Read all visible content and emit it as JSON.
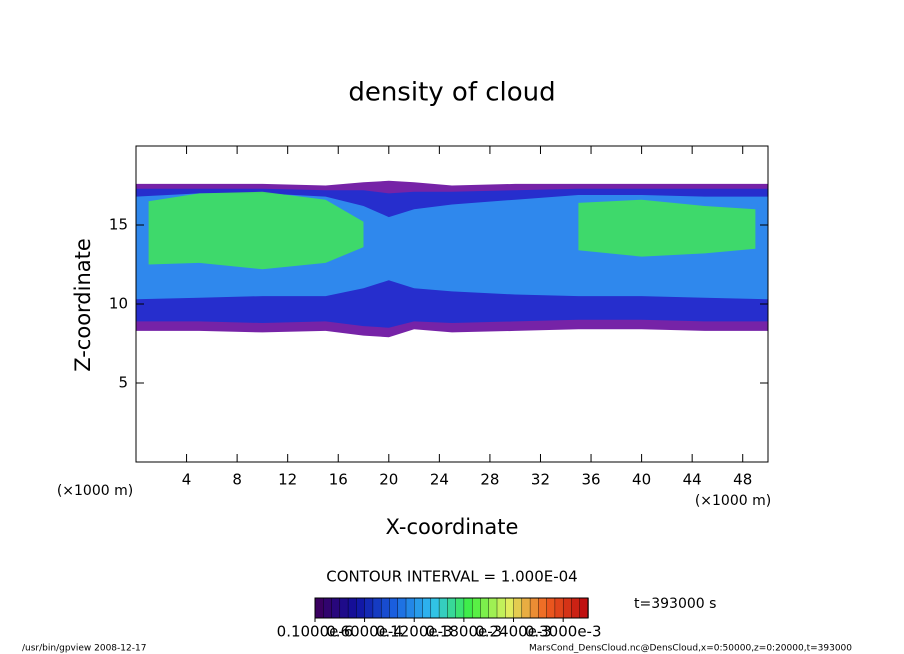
{
  "chart_data": {
    "type": "contour",
    "title": "density of cloud",
    "xlabel": "X-coordinate",
    "ylabel": "Z-coordinate",
    "x_unit": "(×1000 m)",
    "y_unit": "(×1000 m)",
    "xlim": [
      0,
      50
    ],
    "ylim": [
      0,
      20
    ],
    "xticks": [
      4,
      8,
      12,
      16,
      20,
      24,
      28,
      32,
      36,
      40,
      44,
      48
    ],
    "yticks": [
      5,
      10,
      15
    ],
    "layers": [
      {
        "color": "#6a10a0",
        "x": [
          0,
          5,
          10,
          15,
          18,
          20,
          22,
          25,
          30,
          35,
          40,
          45,
          50
        ],
        "top": [
          17.6,
          17.6,
          17.6,
          17.5,
          17.7,
          17.8,
          17.7,
          17.5,
          17.6,
          17.6,
          17.6,
          17.6,
          17.6
        ],
        "bottom": [
          8.3,
          8.3,
          8.2,
          8.3,
          8.0,
          7.9,
          8.4,
          8.2,
          8.3,
          8.4,
          8.4,
          8.3,
          8.3
        ]
      },
      {
        "color": "#2030d0",
        "x": [
          0,
          5,
          10,
          15,
          18,
          20,
          22,
          25,
          30,
          35,
          40,
          45,
          50
        ],
        "top": [
          17.3,
          17.3,
          17.3,
          17.2,
          17.2,
          17.0,
          17.1,
          17.1,
          17.2,
          17.3,
          17.3,
          17.3,
          17.3
        ],
        "bottom": [
          8.9,
          8.9,
          8.8,
          8.9,
          8.6,
          8.5,
          8.9,
          8.8,
          8.9,
          9.0,
          9.0,
          8.9,
          8.9
        ]
      },
      {
        "color": "#3090f0",
        "x": [
          0,
          5,
          10,
          15,
          18,
          20,
          22,
          25,
          30,
          35,
          40,
          45,
          50
        ],
        "top": [
          16.8,
          17.0,
          17.0,
          16.8,
          16.2,
          15.5,
          16.0,
          16.3,
          16.6,
          16.9,
          16.9,
          16.8,
          16.8
        ],
        "bottom": [
          10.3,
          10.4,
          10.5,
          10.5,
          11.0,
          11.5,
          11.0,
          10.8,
          10.6,
          10.5,
          10.5,
          10.4,
          10.3
        ]
      },
      {
        "color": "#40e060",
        "x": [
          1,
          5,
          10,
          15,
          18,
          20,
          35,
          40,
          45,
          49
        ],
        "top": [
          16.5,
          17.0,
          17.1,
          16.6,
          15.2,
          null,
          16.4,
          16.6,
          16.2,
          16.0
        ],
        "bottom": [
          12.5,
          12.6,
          12.2,
          12.6,
          13.6,
          null,
          13.4,
          13.0,
          13.2,
          13.5
        ]
      }
    ],
    "contour_interval": "CONTOUR INTERVAL = 1.000E-04",
    "colorbar": {
      "lim": [
        1e-07,
        0.00033
      ],
      "colors": [
        "#3a0060",
        "#1010a0",
        "#1a60e0",
        "#30c0f0",
        "#40f040",
        "#e0f060",
        "#f06020",
        "#c01010"
      ],
      "ticks": [
        {
          "value": 1e-07,
          "label": "0.1000e-6"
        },
        {
          "value": 6e-05,
          "label": "0.6000e-4"
        },
        {
          "value": 0.00012,
          "label": "0.1200e-3"
        },
        {
          "value": 0.00018,
          "label": "0.1800e-3"
        },
        {
          "value": 0.00024,
          "label": "0.2400e-3"
        },
        {
          "value": 0.0003,
          "label": "0.3000e-3"
        }
      ]
    },
    "time": "t=393000 s",
    "footer_left": "/usr/bin/gpview   2008-12-17",
    "footer_right": "MarsCond_DensCloud.nc@DensCloud,x=0:50000,z=0:20000,t=393000"
  }
}
